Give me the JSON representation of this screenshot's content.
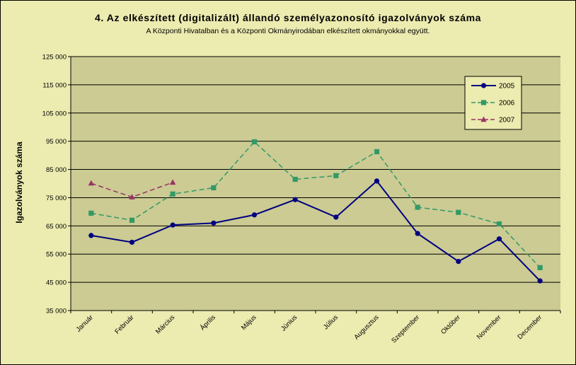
{
  "chart_data": {
    "type": "line",
    "title": "4. Az elkészített (digitalizált) állandó személyazonosító igazolványok száma",
    "subtitle": "A Központi Hivatalban és a Központi Okmányirodában elkészített okmányokkal együtt.",
    "xlabel": "",
    "ylabel": "Igazolványok száma",
    "ylim": [
      35000,
      125000
    ],
    "yticks": [
      35000,
      45000,
      55000,
      65000,
      75000,
      85000,
      95000,
      105000,
      115000,
      125000
    ],
    "ytick_labels": [
      "35 000",
      "45 000",
      "55 000",
      "65 000",
      "75 000",
      "85 000",
      "95 000",
      "105 000",
      "115 000",
      "125 000"
    ],
    "categories": [
      "Január",
      "Február",
      "Március",
      "Április",
      "Május",
      "Június",
      "Július",
      "Augusztus",
      "Szeptember",
      "Október",
      "November",
      "December"
    ],
    "grid": true,
    "legend_position": "top-right",
    "series": [
      {
        "name": "2005",
        "color": "#000080",
        "marker": "circle",
        "dash": "solid",
        "values": [
          61600,
          59200,
          65300,
          66000,
          68900,
          74300,
          68100,
          80900,
          62300,
          52400,
          60400,
          45500
        ]
      },
      {
        "name": "2006",
        "color": "#339966",
        "marker": "square",
        "dash": "dashed",
        "values": [
          69500,
          67000,
          76300,
          78500,
          94800,
          81500,
          82800,
          91300,
          71600,
          69800,
          65700,
          50200
        ]
      },
      {
        "name": "2007",
        "color": "#993366",
        "marker": "triangle",
        "dash": "dashed",
        "values": [
          80100,
          75200,
          80400,
          null,
          null,
          null,
          null,
          null,
          null,
          null,
          null,
          null
        ]
      }
    ]
  }
}
